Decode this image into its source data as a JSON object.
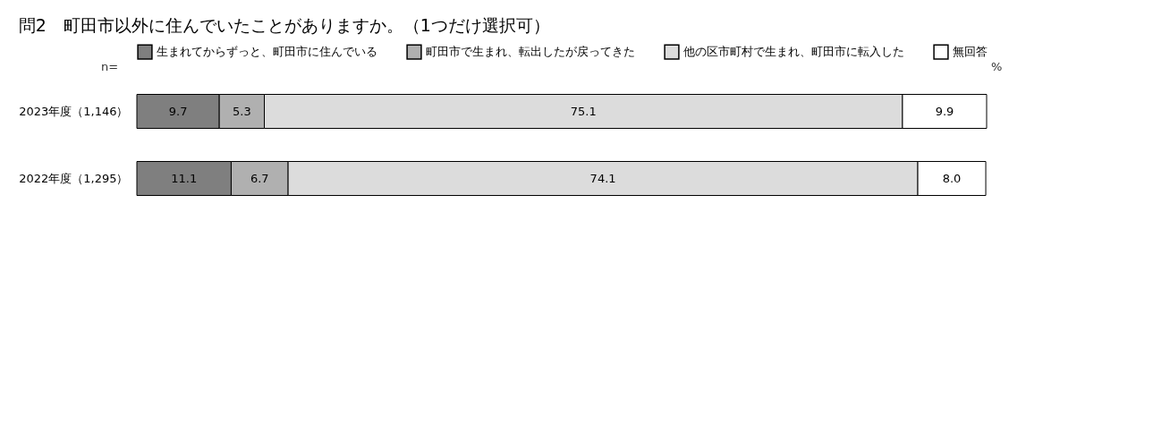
{
  "chart_data": {
    "type": "bar",
    "title": "問2　町田市以外に住んでいたことがありますか。（1つだけ選択可）",
    "orientation": "horizontal",
    "stacked": true,
    "categories": [
      "2023年度（1,146）",
      "2022年度（1,295）"
    ],
    "series": [
      {
        "name": "生まれてからずっと、町田市に住んでいる",
        "color": "#7f7f7f",
        "values": [
          9.7,
          11.1
        ]
      },
      {
        "name": "町田市で生まれ、転出したが戻ってきた",
        "color": "#b0b0b0",
        "values": [
          5.3,
          6.7
        ]
      },
      {
        "name": "他の区市町村で生まれ、町田市に転入した",
        "color": "#dcdcdc",
        "values": [
          75.1,
          74.1
        ]
      },
      {
        "name": "無回答",
        "color": "#ffffff",
        "values": [
          9.9,
          8.0
        ],
        "value_labels": [
          "9.9",
          "8.0"
        ]
      }
    ],
    "data_labels": true,
    "legend": "top",
    "tick_labels": "y",
    "grid": false,
    "annotations": [
      "n=",
      "%"
    ]
  }
}
